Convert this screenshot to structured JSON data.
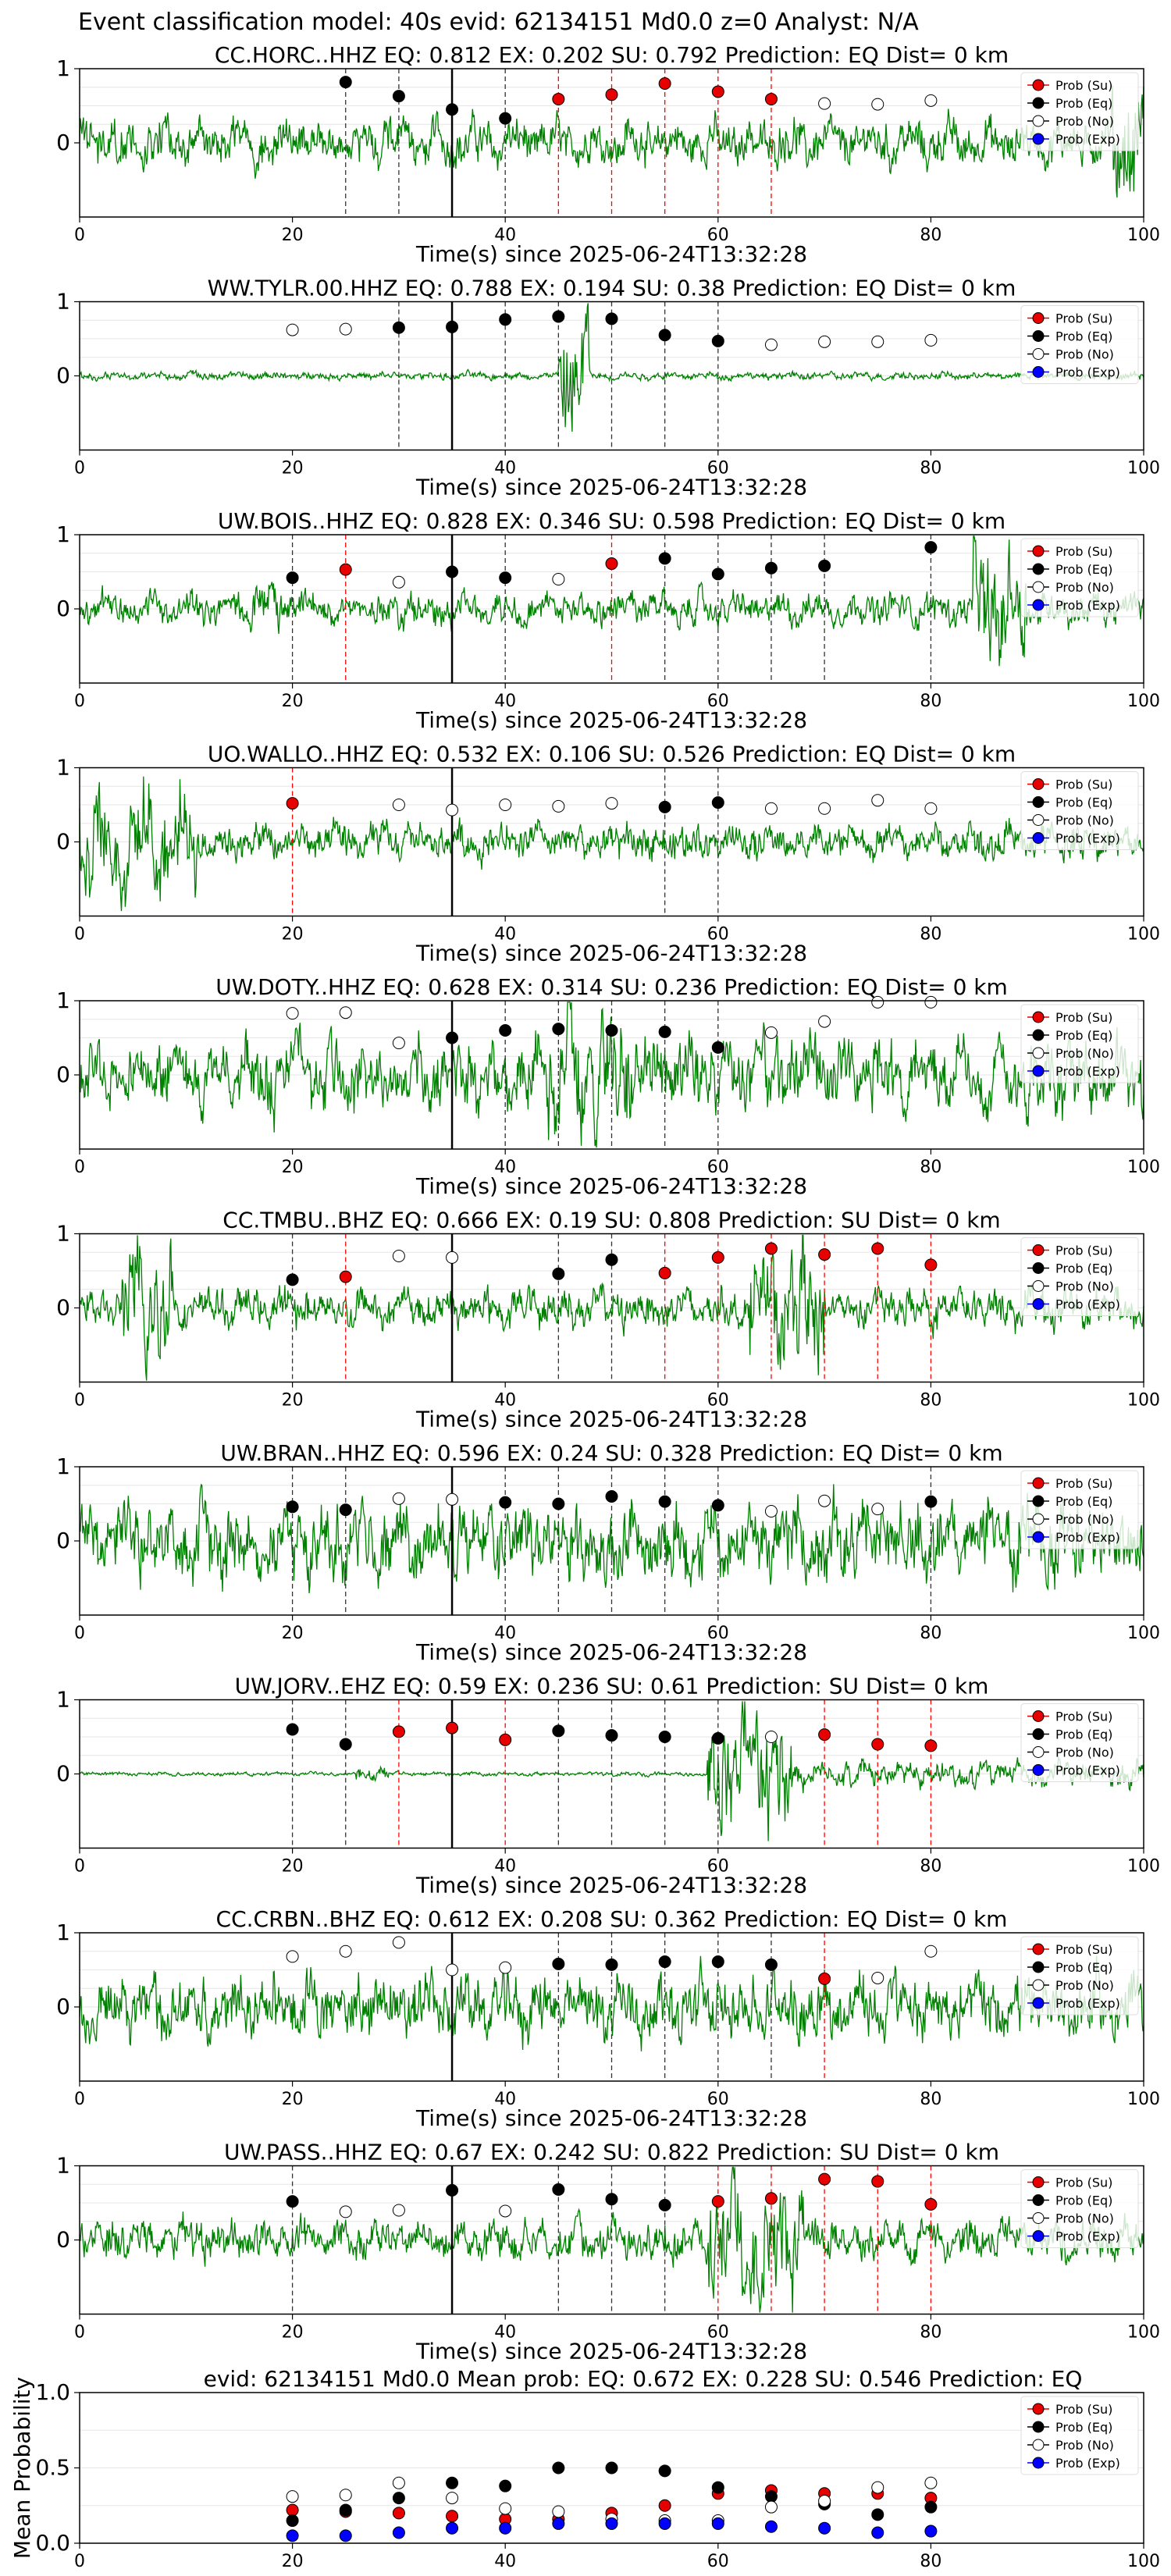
{
  "figure": {
    "suptitle": "Event classification model: 40s evid: 62134151 Md0.0 z=0 Analyst: N/A",
    "xlabel": "Time(s) since 2025-06-24T13:32:28",
    "xticks": [
      0,
      20,
      40,
      60,
      80,
      100
    ],
    "yticks": [
      0,
      1
    ],
    "legend": [
      "Prob (Su)",
      "Prob (Eq)",
      "Prob (No)",
      "Prob (Exp)"
    ]
  },
  "colors": {
    "su": "#e60000",
    "eq": "#000000",
    "no": "#ffffff",
    "exp": "#0000ff",
    "waveform": "#008000",
    "reddash": "#ff0000",
    "blackdash": "#000000"
  },
  "chart_data": [
    {
      "type": "line",
      "title": "CC.HORC..HHZ   EQ: 0.812  EX: 0.202  SU: 0.792   Prediction: EQ    Dist= 0 km",
      "xlim": [
        0,
        100
      ],
      "ylim": [
        -1,
        1
      ],
      "arrival": 35,
      "points": [
        {
          "x": 25,
          "y": 0.82,
          "c": "eq"
        },
        {
          "x": 30,
          "y": 0.63,
          "c": "eq"
        },
        {
          "x": 35,
          "y": 0.45,
          "c": "eq"
        },
        {
          "x": 40,
          "y": 0.33,
          "c": "eq"
        },
        {
          "x": 45,
          "y": 0.59,
          "c": "su"
        },
        {
          "x": 50,
          "y": 0.65,
          "c": "su"
        },
        {
          "x": 55,
          "y": 0.8,
          "c": "su"
        },
        {
          "x": 60,
          "y": 0.69,
          "c": "su"
        },
        {
          "x": 65,
          "y": 0.59,
          "c": "su"
        },
        {
          "x": 70,
          "y": 0.53,
          "c": "no"
        },
        {
          "x": 75,
          "y": 0.52,
          "c": "no"
        },
        {
          "x": 80,
          "y": 0.57,
          "c": "no"
        }
      ],
      "wave": {
        "amp": 0.35,
        "seed": 1,
        "bursts": [
          [
            97,
            100,
            0.9
          ]
        ]
      }
    },
    {
      "type": "line",
      "title": "WW.TYLR.00.HHZ   EQ: 0.788  EX: 0.194  SU: 0.38   Prediction: EQ    Dist= 0 km",
      "xlim": [
        0,
        100
      ],
      "ylim": [
        -1,
        1
      ],
      "arrival": 35,
      "points": [
        {
          "x": 20,
          "y": 0.62,
          "c": "no"
        },
        {
          "x": 25,
          "y": 0.63,
          "c": "no"
        },
        {
          "x": 30,
          "y": 0.65,
          "c": "eq"
        },
        {
          "x": 35,
          "y": 0.66,
          "c": "eq"
        },
        {
          "x": 40,
          "y": 0.76,
          "c": "eq"
        },
        {
          "x": 45,
          "y": 0.8,
          "c": "eq"
        },
        {
          "x": 50,
          "y": 0.77,
          "c": "eq"
        },
        {
          "x": 55,
          "y": 0.55,
          "c": "eq"
        },
        {
          "x": 60,
          "y": 0.47,
          "c": "eq"
        },
        {
          "x": 65,
          "y": 0.42,
          "c": "no"
        },
        {
          "x": 70,
          "y": 0.46,
          "c": "no"
        },
        {
          "x": 75,
          "y": 0.46,
          "c": "no"
        },
        {
          "x": 80,
          "y": 0.48,
          "c": "no"
        }
      ],
      "wave": {
        "amp": 0.06,
        "seed": 2,
        "bursts": [
          [
            45,
            48,
            0.95
          ]
        ]
      }
    },
    {
      "type": "line",
      "title": "UW.BOIS..HHZ   EQ: 0.828  EX: 0.346  SU: 0.598   Prediction: EQ    Dist= 0 km",
      "xlim": [
        0,
        100
      ],
      "ylim": [
        -1,
        1
      ],
      "arrival": 35,
      "points": [
        {
          "x": 20,
          "y": 0.42,
          "c": "eq"
        },
        {
          "x": 25,
          "y": 0.53,
          "c": "su"
        },
        {
          "x": 30,
          "y": 0.36,
          "c": "no"
        },
        {
          "x": 35,
          "y": 0.5,
          "c": "eq"
        },
        {
          "x": 40,
          "y": 0.42,
          "c": "eq"
        },
        {
          "x": 45,
          "y": 0.4,
          "c": "no"
        },
        {
          "x": 50,
          "y": 0.61,
          "c": "su"
        },
        {
          "x": 55,
          "y": 0.68,
          "c": "eq"
        },
        {
          "x": 60,
          "y": 0.47,
          "c": "eq"
        },
        {
          "x": 65,
          "y": 0.55,
          "c": "eq"
        },
        {
          "x": 70,
          "y": 0.58,
          "c": "eq"
        },
        {
          "x": 80,
          "y": 0.83,
          "c": "eq"
        }
      ],
      "wave": {
        "amp": 0.25,
        "seed": 3,
        "bursts": [
          [
            84,
            89,
            1.0
          ],
          [
            16,
            20,
            0.4
          ]
        ]
      }
    },
    {
      "type": "line",
      "title": "UO.WALLO..HHZ   EQ: 0.532  EX: 0.106  SU: 0.526   Prediction: EQ    Dist= 0 km",
      "xlim": [
        0,
        100
      ],
      "ylim": [
        -1,
        1
      ],
      "arrival": 35,
      "points": [
        {
          "x": 20,
          "y": 0.52,
          "c": "su"
        },
        {
          "x": 30,
          "y": 0.5,
          "c": "no"
        },
        {
          "x": 35,
          "y": 0.43,
          "c": "no"
        },
        {
          "x": 40,
          "y": 0.5,
          "c": "no"
        },
        {
          "x": 45,
          "y": 0.48,
          "c": "no"
        },
        {
          "x": 50,
          "y": 0.52,
          "c": "no"
        },
        {
          "x": 55,
          "y": 0.47,
          "c": "eq"
        },
        {
          "x": 60,
          "y": 0.53,
          "c": "eq"
        },
        {
          "x": 65,
          "y": 0.45,
          "c": "no"
        },
        {
          "x": 70,
          "y": 0.45,
          "c": "no"
        },
        {
          "x": 75,
          "y": 0.56,
          "c": "no"
        },
        {
          "x": 80,
          "y": 0.45,
          "c": "no"
        }
      ],
      "wave": {
        "amp": 0.28,
        "seed": 4,
        "bursts": [
          [
            0,
            11,
            0.85
          ]
        ]
      }
    },
    {
      "type": "line",
      "title": "UW.DOTY..HHZ   EQ: 0.628  EX: 0.314  SU: 0.236   Prediction: EQ    Dist= 0 km",
      "xlim": [
        0,
        100
      ],
      "ylim": [
        -1,
        1
      ],
      "arrival": 35,
      "points": [
        {
          "x": 20,
          "y": 0.83,
          "c": "no"
        },
        {
          "x": 25,
          "y": 0.84,
          "c": "no"
        },
        {
          "x": 30,
          "y": 0.43,
          "c": "no"
        },
        {
          "x": 35,
          "y": 0.5,
          "c": "eq"
        },
        {
          "x": 40,
          "y": 0.6,
          "c": "eq"
        },
        {
          "x": 45,
          "y": 0.62,
          "c": "eq"
        },
        {
          "x": 50,
          "y": 0.6,
          "c": "eq"
        },
        {
          "x": 55,
          "y": 0.58,
          "c": "eq"
        },
        {
          "x": 60,
          "y": 0.37,
          "c": "eq"
        },
        {
          "x": 65,
          "y": 0.57,
          "c": "no"
        },
        {
          "x": 70,
          "y": 0.72,
          "c": "no"
        },
        {
          "x": 75,
          "y": 0.98,
          "c": "no"
        },
        {
          "x": 80,
          "y": 0.98,
          "c": "no"
        }
      ],
      "wave": {
        "amp": 0.55,
        "seed": 5,
        "bursts": [
          [
            44,
            52,
            0.95
          ]
        ]
      }
    },
    {
      "type": "line",
      "title": "CC.TMBU..BHZ   EQ: 0.666  EX: 0.19  SU: 0.808   Prediction: SU    Dist= 0 km",
      "xlim": [
        0,
        100
      ],
      "ylim": [
        -1,
        1
      ],
      "arrival": 35,
      "points": [
        {
          "x": 20,
          "y": 0.38,
          "c": "eq"
        },
        {
          "x": 25,
          "y": 0.42,
          "c": "su"
        },
        {
          "x": 30,
          "y": 0.7,
          "c": "no"
        },
        {
          "x": 35,
          "y": 0.68,
          "c": "no"
        },
        {
          "x": 45,
          "y": 0.46,
          "c": "eq"
        },
        {
          "x": 50,
          "y": 0.65,
          "c": "eq"
        },
        {
          "x": 55,
          "y": 0.47,
          "c": "su"
        },
        {
          "x": 60,
          "y": 0.68,
          "c": "su"
        },
        {
          "x": 65,
          "y": 0.8,
          "c": "su"
        },
        {
          "x": 70,
          "y": 0.72,
          "c": "su"
        },
        {
          "x": 75,
          "y": 0.8,
          "c": "su"
        },
        {
          "x": 80,
          "y": 0.58,
          "c": "su"
        }
      ],
      "wave": {
        "amp": 0.3,
        "seed": 6,
        "bursts": [
          [
            4,
            9,
            0.95
          ],
          [
            63,
            70,
            0.95
          ]
        ]
      }
    },
    {
      "type": "line",
      "title": "UW.BRAN..HHZ   EQ: 0.596  EX: 0.24  SU: 0.328   Prediction: EQ    Dist= 0 km",
      "xlim": [
        0,
        100
      ],
      "ylim": [
        -1,
        1
      ],
      "arrival": 35,
      "points": [
        {
          "x": 20,
          "y": 0.46,
          "c": "eq"
        },
        {
          "x": 25,
          "y": 0.42,
          "c": "eq"
        },
        {
          "x": 30,
          "y": 0.57,
          "c": "no"
        },
        {
          "x": 35,
          "y": 0.56,
          "c": "no"
        },
        {
          "x": 40,
          "y": 0.52,
          "c": "eq"
        },
        {
          "x": 45,
          "y": 0.5,
          "c": "eq"
        },
        {
          "x": 50,
          "y": 0.6,
          "c": "eq"
        },
        {
          "x": 55,
          "y": 0.53,
          "c": "eq"
        },
        {
          "x": 60,
          "y": 0.48,
          "c": "eq"
        },
        {
          "x": 65,
          "y": 0.4,
          "c": "no"
        },
        {
          "x": 70,
          "y": 0.54,
          "c": "no"
        },
        {
          "x": 75,
          "y": 0.43,
          "c": "no"
        },
        {
          "x": 80,
          "y": 0.53,
          "c": "eq"
        }
      ],
      "wave": {
        "amp": 0.6,
        "seed": 7,
        "bursts": []
      }
    },
    {
      "type": "line",
      "title": "UW.JORV..EHZ   EQ: 0.59  EX: 0.236  SU: 0.61   Prediction: SU    Dist= 0 km",
      "xlim": [
        0,
        100
      ],
      "ylim": [
        -1,
        1
      ],
      "arrival": 35,
      "points": [
        {
          "x": 20,
          "y": 0.6,
          "c": "eq"
        },
        {
          "x": 25,
          "y": 0.4,
          "c": "eq"
        },
        {
          "x": 30,
          "y": 0.57,
          "c": "su"
        },
        {
          "x": 35,
          "y": 0.62,
          "c": "su"
        },
        {
          "x": 40,
          "y": 0.46,
          "c": "su"
        },
        {
          "x": 45,
          "y": 0.58,
          "c": "eq"
        },
        {
          "x": 50,
          "y": 0.52,
          "c": "eq"
        },
        {
          "x": 55,
          "y": 0.5,
          "c": "eq"
        },
        {
          "x": 60,
          "y": 0.48,
          "c": "eq"
        },
        {
          "x": 65,
          "y": 0.5,
          "c": "no"
        },
        {
          "x": 70,
          "y": 0.53,
          "c": "su"
        },
        {
          "x": 75,
          "y": 0.4,
          "c": "su"
        },
        {
          "x": 80,
          "y": 0.38,
          "c": "su"
        }
      ],
      "wave": {
        "amp": 0.03,
        "seed": 8,
        "bursts": [
          [
            59,
            67,
            0.95
          ],
          [
            67,
            100,
            0.2
          ],
          [
            26,
            29,
            0.15
          ]
        ]
      }
    },
    {
      "type": "line",
      "title": "CC.CRBN..BHZ   EQ: 0.612  EX: 0.208  SU: 0.362   Prediction: EQ    Dist= 0 km",
      "xlim": [
        0,
        100
      ],
      "ylim": [
        -1,
        1
      ],
      "arrival": 35,
      "points": [
        {
          "x": 20,
          "y": 0.68,
          "c": "no"
        },
        {
          "x": 25,
          "y": 0.75,
          "c": "no"
        },
        {
          "x": 30,
          "y": 0.87,
          "c": "no"
        },
        {
          "x": 35,
          "y": 0.5,
          "c": "no"
        },
        {
          "x": 40,
          "y": 0.53,
          "c": "no"
        },
        {
          "x": 45,
          "y": 0.58,
          "c": "eq"
        },
        {
          "x": 50,
          "y": 0.57,
          "c": "eq"
        },
        {
          "x": 55,
          "y": 0.61,
          "c": "eq"
        },
        {
          "x": 60,
          "y": 0.61,
          "c": "eq"
        },
        {
          "x": 65,
          "y": 0.57,
          "c": "eq"
        },
        {
          "x": 70,
          "y": 0.38,
          "c": "su"
        },
        {
          "x": 75,
          "y": 0.39,
          "c": "no"
        },
        {
          "x": 80,
          "y": 0.75,
          "c": "no"
        }
      ],
      "wave": {
        "amp": 0.5,
        "seed": 9,
        "bursts": []
      }
    },
    {
      "type": "line",
      "title": "UW.PASS..HHZ   EQ: 0.67  EX: 0.242  SU: 0.822   Prediction: SU    Dist= 0 km",
      "xlim": [
        0,
        100
      ],
      "ylim": [
        -1,
        1
      ],
      "arrival": 35,
      "points": [
        {
          "x": 20,
          "y": 0.52,
          "c": "eq"
        },
        {
          "x": 25,
          "y": 0.38,
          "c": "no"
        },
        {
          "x": 30,
          "y": 0.4,
          "c": "no"
        },
        {
          "x": 35,
          "y": 0.67,
          "c": "eq"
        },
        {
          "x": 40,
          "y": 0.39,
          "c": "no"
        },
        {
          "x": 45,
          "y": 0.68,
          "c": "eq"
        },
        {
          "x": 50,
          "y": 0.55,
          "c": "eq"
        },
        {
          "x": 55,
          "y": 0.47,
          "c": "eq"
        },
        {
          "x": 60,
          "y": 0.52,
          "c": "su"
        },
        {
          "x": 65,
          "y": 0.56,
          "c": "su"
        },
        {
          "x": 70,
          "y": 0.82,
          "c": "su"
        },
        {
          "x": 75,
          "y": 0.79,
          "c": "su"
        },
        {
          "x": 80,
          "y": 0.48,
          "c": "su"
        }
      ],
      "wave": {
        "amp": 0.3,
        "seed": 10,
        "bursts": [
          [
            59,
            68,
            0.95
          ]
        ]
      }
    },
    {
      "type": "scatter",
      "title": "evid: 62134151  Md0.0   Mean prob:   EQ: 0.672  EX: 0.228  SU: 0.546   Prediction: EQ",
      "ylabel": "Mean Probability",
      "xlim": [
        0,
        100
      ],
      "ylim": [
        0,
        1
      ],
      "yticks": [
        "0.0",
        "0.5",
        "1.0"
      ],
      "x": [
        20,
        25,
        30,
        35,
        40,
        45,
        50,
        55,
        60,
        65,
        70,
        75,
        80
      ],
      "series": [
        {
          "name": "Prob (Su)",
          "c": "su",
          "values": [
            0.22,
            0.21,
            0.2,
            0.18,
            0.16,
            0.16,
            0.2,
            0.25,
            0.33,
            0.35,
            0.33,
            0.33,
            0.3
          ]
        },
        {
          "name": "Prob (Eq)",
          "c": "eq",
          "values": [
            0.15,
            0.22,
            0.3,
            0.4,
            0.38,
            0.5,
            0.5,
            0.48,
            0.37,
            0.31,
            0.26,
            0.19,
            0.24
          ]
        },
        {
          "name": "Prob (No)",
          "c": "no",
          "values": [
            0.31,
            0.32,
            0.4,
            0.3,
            0.23,
            0.21,
            0.16,
            0.15,
            0.15,
            0.24,
            0.28,
            0.37,
            0.4
          ]
        },
        {
          "name": "Prob (Exp)",
          "c": "exp",
          "values": [
            0.05,
            0.05,
            0.07,
            0.1,
            0.1,
            0.13,
            0.13,
            0.13,
            0.13,
            0.11,
            0.1,
            0.07,
            0.08
          ]
        }
      ]
    }
  ]
}
